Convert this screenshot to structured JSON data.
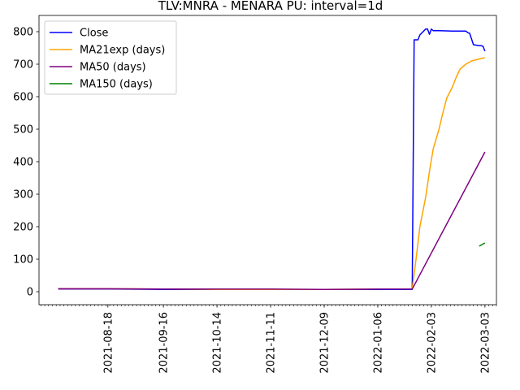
{
  "chart_data": {
    "type": "line",
    "title": "TLV:MNRA - MENARA PU: interval=1d",
    "xlabel": "",
    "ylabel": "",
    "x_ticks": [
      "2021-08-18",
      "2021-09-16",
      "2021-10-14",
      "2021-11-11",
      "2021-12-09",
      "2022-01-06",
      "2022-02-03",
      "2022-03-03"
    ],
    "y_ticks": [
      0,
      100,
      200,
      300,
      400,
      500,
      600,
      700,
      800
    ],
    "xlim": [
      "2021-07-13",
      "2022-03-09"
    ],
    "ylim": [
      -40,
      850
    ],
    "grid": false,
    "legend_position": "top-left",
    "series": [
      {
        "name": "Close",
        "color": "#0000ff",
        "points": [
          [
            "2021-07-23",
            8
          ],
          [
            "2021-08-18",
            8
          ],
          [
            "2021-09-16",
            7
          ],
          [
            "2021-10-14",
            7
          ],
          [
            "2021-11-11",
            7
          ],
          [
            "2021-12-09",
            7
          ],
          [
            "2022-01-06",
            7
          ],
          [
            "2022-01-24",
            7
          ],
          [
            "2022-01-25",
            775
          ],
          [
            "2022-01-26",
            775
          ],
          [
            "2022-01-27",
            775
          ],
          [
            "2022-01-28",
            790
          ],
          [
            "2022-01-31",
            808
          ],
          [
            "2022-02-01",
            808
          ],
          [
            "2022-02-02",
            792
          ],
          [
            "2022-02-03",
            808
          ],
          [
            "2022-02-04",
            803
          ],
          [
            "2022-02-07",
            803
          ],
          [
            "2022-02-14",
            802
          ],
          [
            "2022-02-21",
            802
          ],
          [
            "2022-02-22",
            797
          ],
          [
            "2022-02-23",
            795
          ],
          [
            "2022-02-25",
            760
          ],
          [
            "2022-02-28",
            757
          ],
          [
            "2022-03-01",
            757
          ],
          [
            "2022-03-02",
            755
          ],
          [
            "2022-03-03",
            740
          ]
        ]
      },
      {
        "name": "MA21exp (days)",
        "color": "#ffa500",
        "points": [
          [
            "2021-07-23",
            9
          ],
          [
            "2021-08-18",
            9
          ],
          [
            "2021-09-16",
            8
          ],
          [
            "2021-10-14",
            7
          ],
          [
            "2021-11-11",
            7
          ],
          [
            "2021-12-09",
            7
          ],
          [
            "2022-01-06",
            8
          ],
          [
            "2022-01-24",
            8
          ],
          [
            "2022-01-26",
            100
          ],
          [
            "2022-01-28",
            200
          ],
          [
            "2022-01-31",
            290
          ],
          [
            "2022-02-02",
            370
          ],
          [
            "2022-02-04",
            440
          ],
          [
            "2022-02-07",
            500
          ],
          [
            "2022-02-09",
            550
          ],
          [
            "2022-02-11",
            595
          ],
          [
            "2022-02-14",
            630
          ],
          [
            "2022-02-16",
            660
          ],
          [
            "2022-02-18",
            685
          ],
          [
            "2022-02-21",
            700
          ],
          [
            "2022-02-24",
            710
          ],
          [
            "2022-02-28",
            716
          ],
          [
            "2022-03-03",
            720
          ]
        ]
      },
      {
        "name": "MA50 (days)",
        "color": "#800080",
        "points": [
          [
            "2021-07-23",
            9
          ],
          [
            "2021-08-18",
            9
          ],
          [
            "2021-09-16",
            8
          ],
          [
            "2021-10-14",
            8
          ],
          [
            "2021-11-11",
            8
          ],
          [
            "2021-12-09",
            7
          ],
          [
            "2022-01-06",
            8
          ],
          [
            "2022-01-24",
            8
          ],
          [
            "2022-03-03",
            430
          ]
        ]
      },
      {
        "name": "MA150 (days)",
        "color": "#008000",
        "points": [
          [
            "2022-02-28",
            140
          ],
          [
            "2022-03-03",
            150
          ]
        ]
      }
    ]
  }
}
